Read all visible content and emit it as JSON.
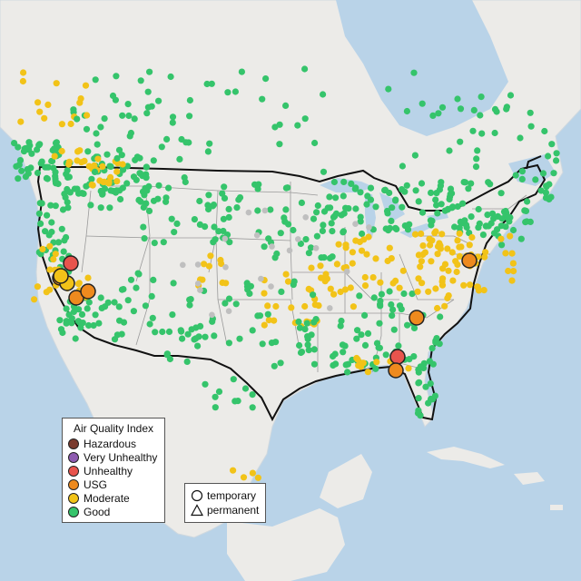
{
  "legend": {
    "title": "Air Quality Index",
    "items": [
      {
        "label": "Hazardous",
        "color": "#7a3b2e"
      },
      {
        "label": "Very Unhealthy",
        "color": "#8e5bb0"
      },
      {
        "label": "Unhealthy",
        "color": "#e8544d"
      },
      {
        "label": "USG",
        "color": "#ee8a1e"
      },
      {
        "label": "Moderate",
        "color": "#f2c318"
      },
      {
        "label": "Good",
        "color": "#35c46b"
      }
    ]
  },
  "monitor_type_legend": {
    "items": [
      {
        "label": "temporary",
        "icon": "circle-outline-icon"
      },
      {
        "label": "permanent",
        "icon": "triangle-outline-icon"
      }
    ]
  },
  "colors": {
    "water": "#b9d3e8",
    "land": "#ecebe8",
    "border": "#111111",
    "state_lines": "#9a9a9a",
    "inactive_monitor": "#bfbfbf"
  }
}
